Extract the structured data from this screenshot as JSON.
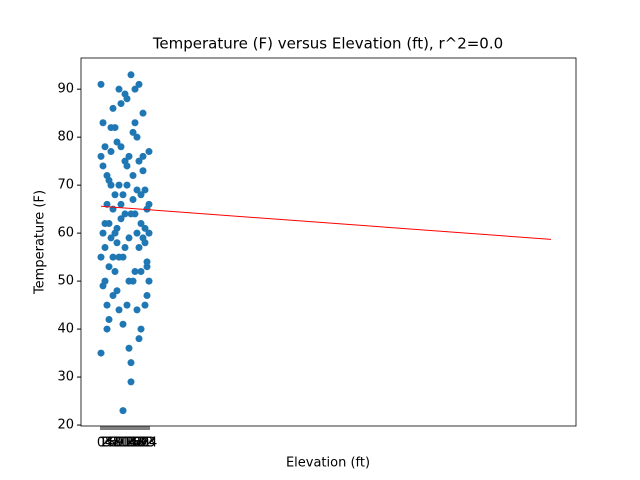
{
  "chart_data": {
    "type": "scatter",
    "title": "Temperature (F) versus Elevation (ft), r^2=0.0",
    "xlabel": "Elevation (ft)",
    "ylabel": "Temperature (F)",
    "color": "#1f77b4",
    "x": [
      0,
      1,
      2,
      3,
      4,
      5,
      6,
      7,
      8,
      9,
      10,
      11,
      12,
      13,
      14,
      15,
      16,
      17,
      18,
      19,
      20,
      21,
      22,
      23,
      24,
      0,
      1,
      2,
      3,
      4,
      5,
      6,
      7,
      8,
      9,
      10,
      11,
      12,
      13,
      14,
      15,
      16,
      17,
      18,
      19,
      20,
      21,
      22,
      23,
      24,
      0,
      1,
      2,
      3,
      4,
      5,
      6,
      7,
      8,
      9,
      10,
      11,
      12,
      13,
      14,
      15,
      16,
      17,
      18,
      19,
      20,
      21,
      22,
      23,
      24,
      0,
      1,
      2,
      3,
      4,
      5,
      6,
      7,
      8,
      9,
      10,
      11,
      12,
      13,
      14,
      15,
      16,
      17,
      18,
      19,
      20,
      21,
      22,
      23,
      24
    ],
    "y": [
      91,
      60,
      78,
      45,
      62,
      70,
      55,
      82,
      58,
      90,
      66,
      23,
      75,
      88,
      50,
      93,
      72,
      64,
      80,
      57,
      68,
      85,
      61,
      53,
      66,
      35,
      74,
      50,
      66,
      42,
      77,
      86,
      60,
      48,
      70,
      63,
      55,
      89,
      45,
      76,
      29,
      81,
      52,
      60,
      91,
      40,
      73,
      58,
      47,
      77,
      55,
      83,
      62,
      40,
      71,
      59,
      65,
      52,
      79,
      44,
      87,
      68,
      57,
      74,
      36,
      64,
      50,
      83,
      69,
      38,
      62,
      76,
      45,
      54,
      60,
      76,
      49,
      57,
      72,
      53,
      82,
      47,
      68,
      61,
      55,
      78,
      41,
      64,
      70,
      59,
      33,
      67,
      90,
      44,
      75,
      52,
      59,
      69,
      65,
      50
    ],
    "fit": {
      "color": "red",
      "x": [
        0,
        225
      ],
      "y": [
        65.6,
        58.7
      ]
    },
    "xlim": [
      -10,
      237.5
    ],
    "ylim": [
      19.8,
      96.5
    ],
    "xticks": [
      0,
      1,
      2,
      3,
      4,
      5,
      6,
      7,
      8,
      9,
      10,
      11,
      12,
      13,
      14,
      15,
      16,
      17,
      18,
      19,
      20,
      21,
      22,
      23,
      24
    ],
    "yticks": [
      20,
      30,
      40,
      50,
      60,
      70,
      80,
      90
    ]
  }
}
